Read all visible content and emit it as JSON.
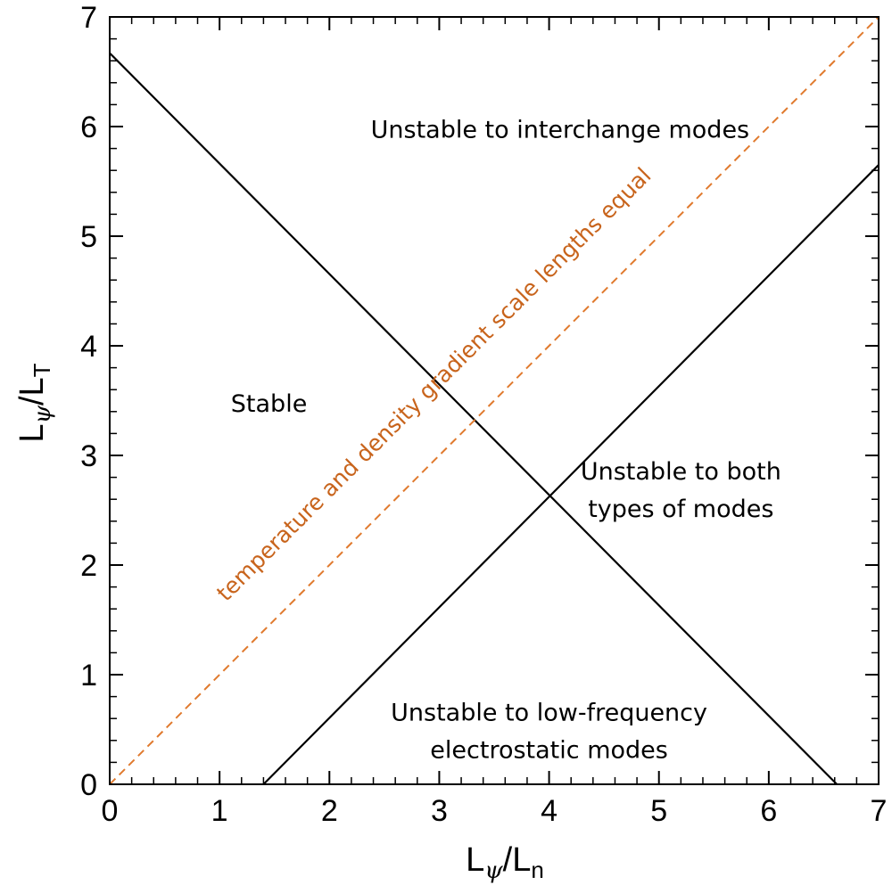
{
  "chart_data": {
    "type": "line",
    "xlim": [
      0,
      7
    ],
    "ylim": [
      0,
      7
    ],
    "xticks": [
      0,
      1,
      2,
      3,
      4,
      5,
      6,
      7
    ],
    "yticks": [
      0,
      1,
      2,
      3,
      4,
      5,
      6,
      7
    ],
    "minor_ticks_per_major": 5,
    "grid": false,
    "xlabel": {
      "main": "L",
      "greek": "ψ",
      "tail": "/L",
      "subscript": "n"
    },
    "ylabel": {
      "main": "L",
      "greek": "ψ",
      "tail": "/L",
      "subscript": "T"
    },
    "lines": [
      {
        "id": "interchange-boundary",
        "x": [
          0,
          6.62
        ],
        "y": [
          6.67,
          0
        ],
        "color": "#000000",
        "style": "solid"
      },
      {
        "id": "electrostatic-boundary",
        "x": [
          1.4,
          7
        ],
        "y": [
          0,
          5.65
        ],
        "color": "#000000",
        "style": "solid"
      },
      {
        "id": "equal-gradient-line",
        "x": [
          0,
          7
        ],
        "y": [
          0,
          7
        ],
        "color": "#e07a2e",
        "style": "dashed"
      }
    ],
    "annotations": [
      {
        "id": "stable",
        "lines": [
          "Stable"
        ],
        "x": 1.45,
        "y": 3.4
      },
      {
        "id": "interchange",
        "lines": [
          "Unstable to interchange modes"
        ],
        "x": 4.1,
        "y": 5.9
      },
      {
        "id": "both",
        "lines": [
          "Unstable to both",
          "types of modes"
        ],
        "x": 5.2,
        "y": 2.78
      },
      {
        "id": "electrostatic",
        "lines": [
          "Unstable to low-frequency",
          "electrostatic modes"
        ],
        "x": 4.0,
        "y": 0.58
      }
    ],
    "diagonal_label": {
      "text": "temperature and density gradient scale lengths equal",
      "color": "#c8641c",
      "x": 3.0,
      "y": 3.6
    }
  }
}
